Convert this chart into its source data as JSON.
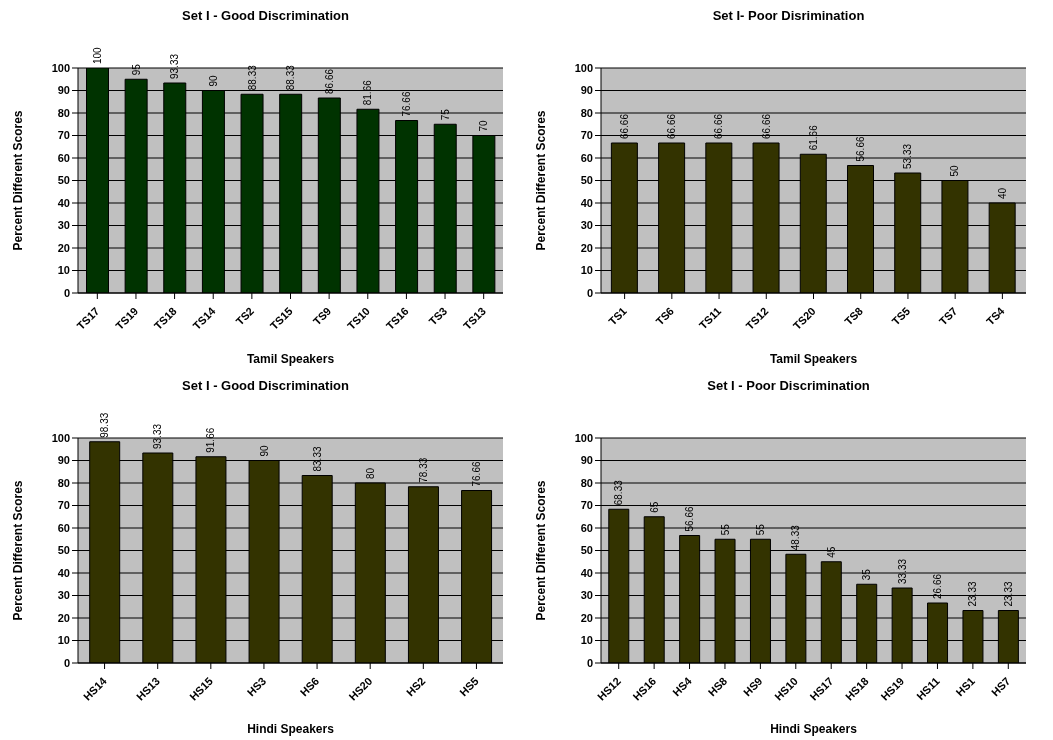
{
  "chart_data": [
    {
      "type": "bar",
      "title": "Set I - Good Discrimination",
      "xlabel": "Tamil Speakers",
      "ylabel": "Percent Different Scores",
      "categories": [
        "TS17",
        "TS19",
        "TS18",
        "TS14",
        "TS2",
        "TS15",
        "TS9",
        "TS10",
        "TS16",
        "TS3",
        "TS13"
      ],
      "values": [
        100,
        95,
        93.33,
        90,
        88.33,
        88.33,
        86.66,
        81.66,
        76.66,
        75,
        70
      ],
      "color": "#003300",
      "ylim": [
        0,
        100
      ],
      "yticks": [
        0,
        10,
        20,
        30,
        40,
        50,
        60,
        70,
        80,
        90,
        100
      ],
      "grid": "y",
      "data_labels": true
    },
    {
      "type": "bar",
      "title": "Set I- Poor Disrimination",
      "xlabel": "Tamil Speakers",
      "ylabel": "Percent Different Scores",
      "categories": [
        "TS1",
        "TS6",
        "TS11",
        "TS12",
        "TS20",
        "TS8",
        "TS5",
        "TS7",
        "TS4"
      ],
      "values": [
        66.66,
        66.66,
        66.66,
        66.66,
        61.66,
        56.66,
        53.33,
        50,
        40
      ],
      "color": "#333300",
      "ylim": [
        0,
        100
      ],
      "yticks": [
        0,
        10,
        20,
        30,
        40,
        50,
        60,
        70,
        80,
        90,
        100
      ],
      "grid": "y",
      "data_labels": true
    },
    {
      "type": "bar",
      "title": "Set I - Good Discrimination",
      "xlabel": "Hindi Speakers",
      "ylabel": "Percent Different Scores",
      "categories": [
        "HS14",
        "HS13",
        "HS15",
        "HS3",
        "HS6",
        "HS20",
        "HS2",
        "HS5"
      ],
      "values": [
        98.33,
        93.33,
        91.66,
        90,
        83.33,
        80,
        78.33,
        76.66
      ],
      "color": "#333300",
      "ylim": [
        0,
        100
      ],
      "yticks": [
        0,
        10,
        20,
        30,
        40,
        50,
        60,
        70,
        80,
        90,
        100
      ],
      "grid": "y",
      "data_labels": true
    },
    {
      "type": "bar",
      "title": "Set I - Poor Discrimination",
      "xlabel": "Hindi Speakers",
      "ylabel": "Percent Different Scores",
      "categories": [
        "HS12",
        "HS16",
        "HS4",
        "HS8",
        "HS9",
        "HS10",
        "HS17",
        "HS18",
        "HS19",
        "HS11",
        "HS1",
        "HS7"
      ],
      "values": [
        68.33,
        65,
        56.66,
        55,
        55,
        48.33,
        45,
        35,
        33.33,
        26.66,
        23.33,
        23.33
      ],
      "color": "#333300",
      "ylim": [
        0,
        100
      ],
      "yticks": [
        0,
        10,
        20,
        30,
        40,
        50,
        60,
        70,
        80,
        90,
        100
      ],
      "grid": "y",
      "data_labels": true
    }
  ]
}
